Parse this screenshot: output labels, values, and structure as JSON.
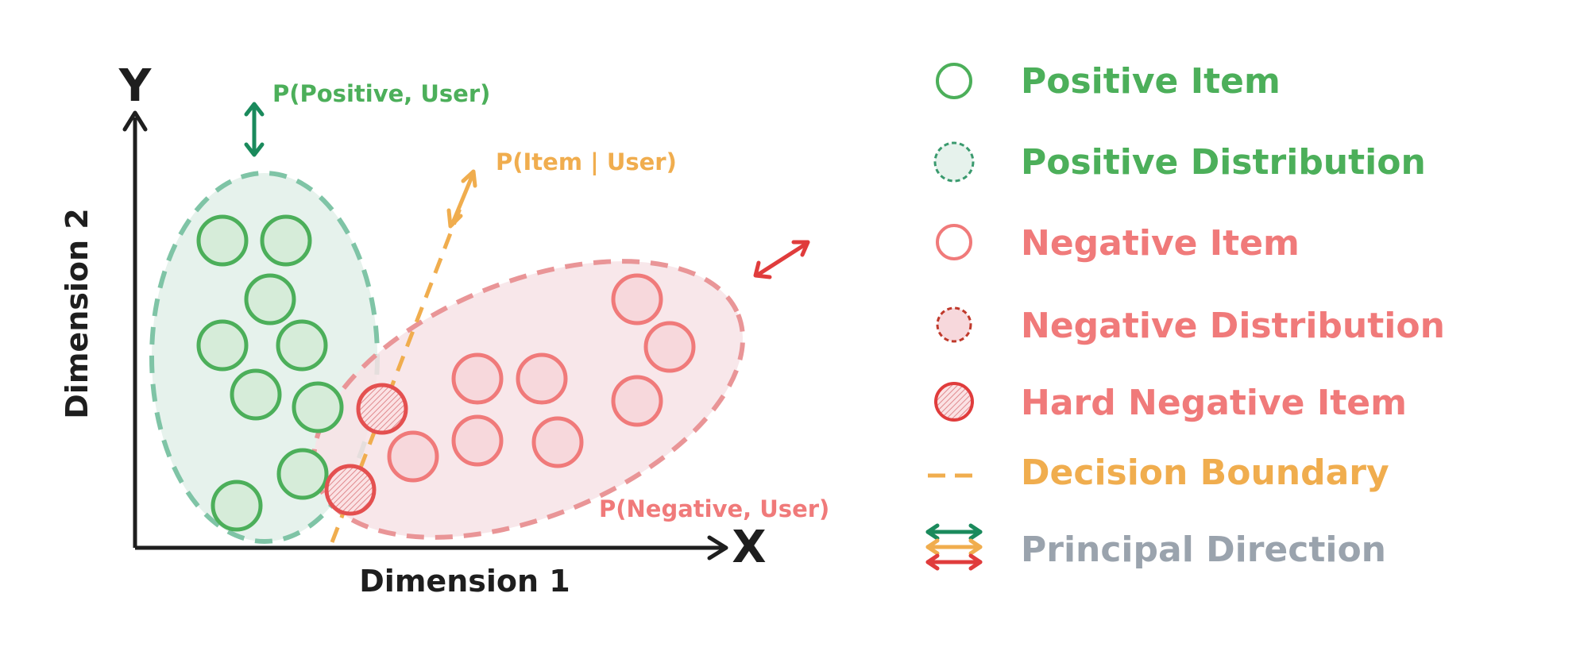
{
  "diagram": {
    "axes": {
      "x_letter": "X",
      "y_letter": "Y",
      "x_title": "Dimension 1",
      "y_title": "Dimension 2"
    },
    "annotations": {
      "positive_direction": "P(Positive, User)",
      "item_user": "P(Item | User)",
      "negative_direction": "P(Negative, User)"
    }
  },
  "legend": {
    "positive_item": "Positive Item",
    "positive_distribution": "Positive Distribution",
    "negative_item": "Negative Item",
    "negative_distribution": "Negative Distribution",
    "hard_negative_item": "Hard Negative Item",
    "decision_boundary": "Decision Boundary",
    "principal_direction": "Principal Direction"
  },
  "colors": {
    "positive": "#4caf5a",
    "positive_fill": "#e6f2ec",
    "positive_dash": "#7fc4a6",
    "negative": "#f07a7a",
    "negative_fill": "#f7e3e6",
    "negative_dash": "#e99597",
    "boundary": "#f0ad4e",
    "principal_text": "#9aa3ad",
    "arrow_green": "#1a8a5c",
    "arrow_orange": "#f0ad4e",
    "arrow_red": "#e03c3c",
    "axis": "#1e1e1e",
    "hard_negative_stroke": "#e45050"
  }
}
